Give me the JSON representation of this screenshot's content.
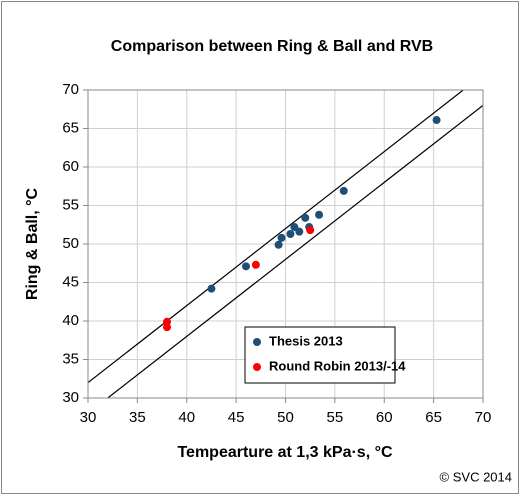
{
  "chart_data": {
    "type": "scatter",
    "title": "Comparison between Ring & Ball and RVB",
    "x_label": "Tempearture  at 1,3 kPa·s, °C",
    "y_label": "Ring & Ball, °C",
    "footnote": "© SVC 2014",
    "xlim": [
      30,
      70
    ],
    "xticks": [
      30,
      35,
      40,
      45,
      50,
      55,
      60,
      65,
      70
    ],
    "ylim": [
      30,
      70
    ],
    "yticks": [
      30,
      35,
      40,
      45,
      50,
      55,
      60,
      65,
      70
    ],
    "grid": true,
    "legend": "lower right",
    "series": [
      {
        "name": "Thesis 2013",
        "color": "#1f4e79",
        "x": [
          42.5,
          46,
          49.3,
          49.6,
          50.5,
          50.9,
          51.4,
          52,
          52.4,
          53.4,
          55.9,
          65.3
        ],
        "values": [
          44.2,
          47.1,
          49.9,
          50.8,
          51.3,
          52.2,
          51.6,
          53.4,
          52.2,
          53.8,
          56.9,
          66.1
        ]
      },
      {
        "name": "Round Robin 2013/-14",
        "color": "#ff0000",
        "x": [
          38,
          38,
          47,
          52.5
        ],
        "values": [
          39.9,
          39.2,
          47.3,
          51.8
        ]
      }
    ],
    "lines": [
      {
        "color": "#000000",
        "x": [
          30,
          68
        ],
        "y": [
          32,
          70
        ]
      },
      {
        "color": "#000000",
        "x": [
          32,
          70
        ],
        "y": [
          30,
          68
        ]
      }
    ]
  }
}
